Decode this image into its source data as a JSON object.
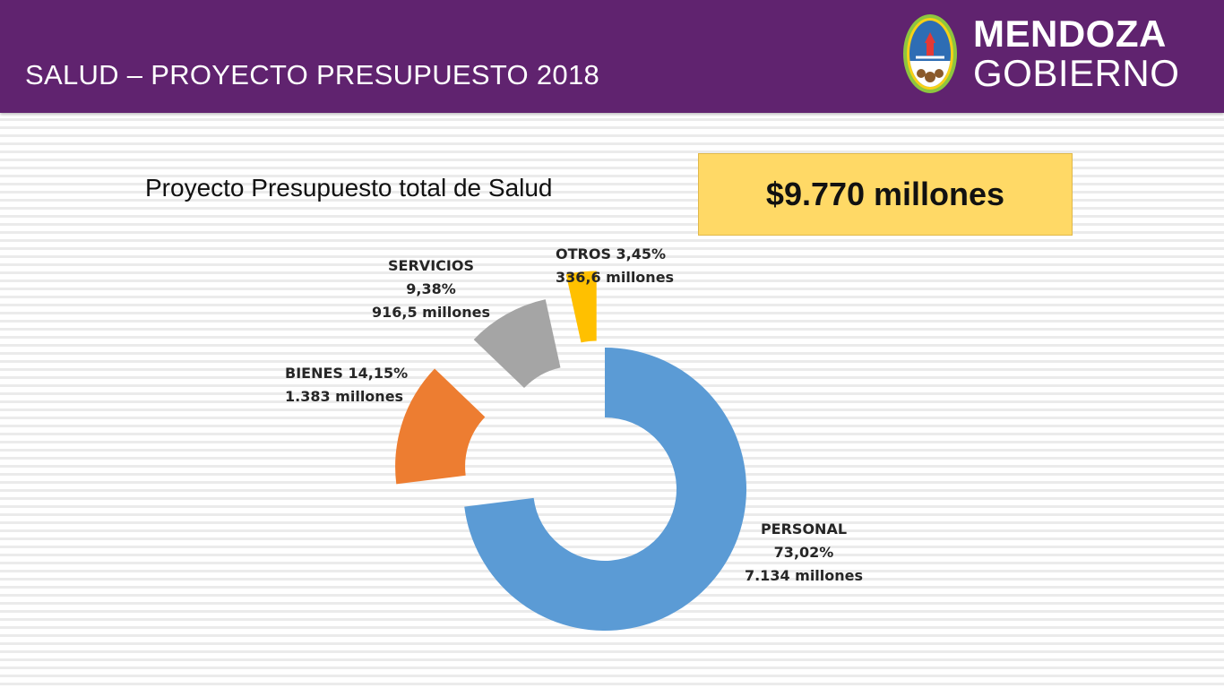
{
  "header": {
    "title": "SALUD – PROYECTO PRESUPUESTO 2018",
    "logo_line1": "MENDOZA",
    "logo_line2": "GOBIERNO",
    "logo_icon": "provincial-seal-icon"
  },
  "subtitle": "Proyecto Presupuesto total de Salud",
  "total": "$9.770 millones",
  "colors": {
    "header_bg": "#60236f",
    "personal": "#5b9bd5",
    "bienes": "#ed7d31",
    "servicios": "#a5a5a5",
    "otros": "#ffc000",
    "total_box": "#ffd966"
  },
  "chart_data": {
    "type": "pie",
    "variant": "exploded-donut",
    "title": "",
    "slices": [
      {
        "name": "PERSONAL",
        "percent_label": "73,02%",
        "value_label": "7.134 millones",
        "percent": 73.02,
        "value": 7134,
        "color": "#5b9bd5"
      },
      {
        "name": "BIENES",
        "percent_label": "14,15%",
        "value_label": "1.383 millones",
        "percent": 14.15,
        "value": 1383,
        "color": "#ed7d31"
      },
      {
        "name": "SERVICIOS",
        "percent_label": "9,38%",
        "value_label": "916,5 millones",
        "percent": 9.38,
        "value": 916.5,
        "color": "#a5a5a5"
      },
      {
        "name": "OTROS",
        "percent_label": "3,45%",
        "value_label": "336,6 millones",
        "percent": 3.45,
        "value": 336.6,
        "color": "#ffc000"
      }
    ]
  }
}
